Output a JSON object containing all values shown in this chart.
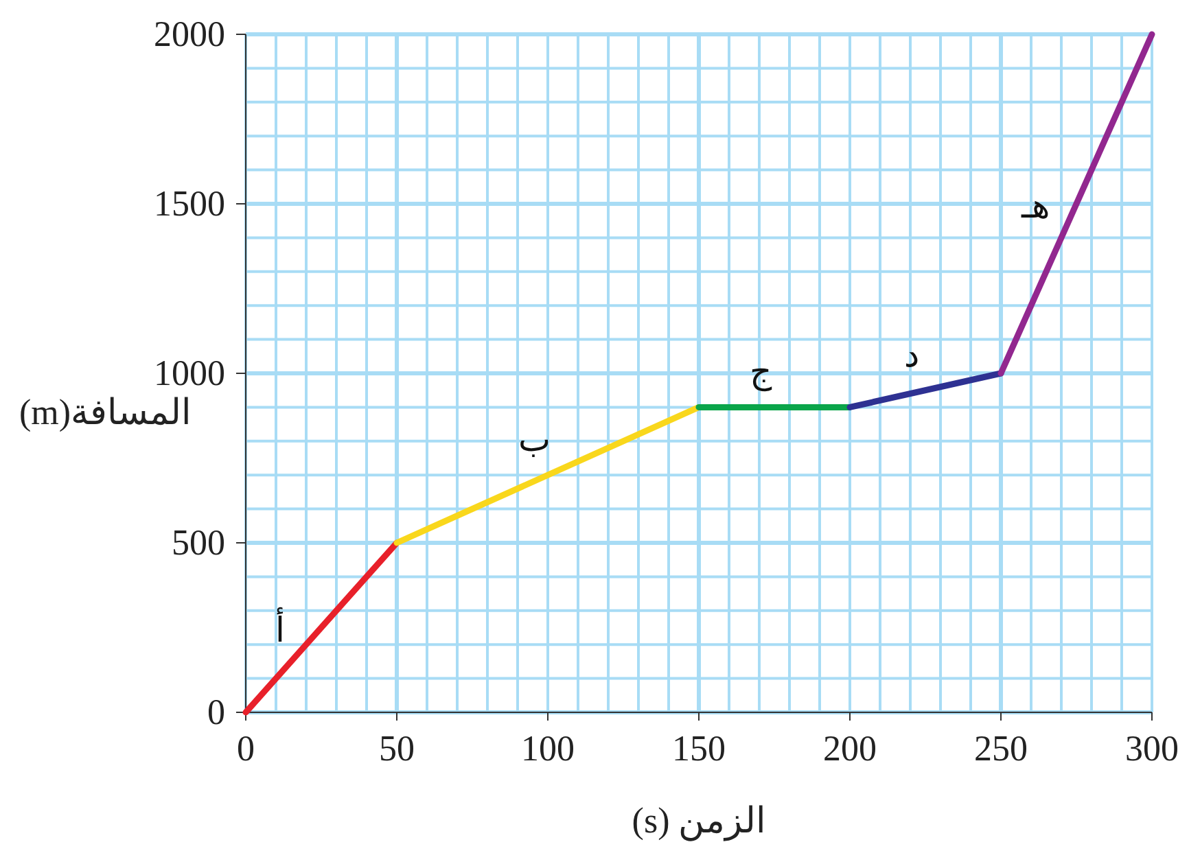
{
  "chart_data": {
    "type": "line",
    "xlabel": "الزمن (s)",
    "ylabel": "المسافة(m)",
    "xlim": [
      0,
      300
    ],
    "ylim": [
      0,
      2000
    ],
    "grid": true,
    "marker": "none",
    "line_style": "solid",
    "xticks": [
      0,
      {
        "value": 10,
        "label": null
      },
      {
        "value": 20,
        "label": null
      },
      {
        "value": 30,
        "label": null
      },
      {
        "value": 40,
        "label": null
      },
      50,
      {
        "value": 60,
        "label": null
      },
      {
        "value": 70,
        "label": null
      },
      {
        "value": 80,
        "label": null
      },
      {
        "value": 90,
        "label": null
      },
      100,
      {
        "value": 110,
        "label": null
      },
      {
        "value": 120,
        "label": null
      },
      {
        "value": 130,
        "label": null
      },
      {
        "value": 140,
        "label": null
      },
      150,
      {
        "value": 160,
        "label": null
      },
      {
        "value": 170,
        "label": null
      },
      {
        "value": 180,
        "label": null
      },
      {
        "value": 190,
        "label": null
      },
      200,
      {
        "value": 210,
        "label": null
      },
      {
        "value": 220,
        "label": null
      },
      {
        "value": 230,
        "label": null
      },
      {
        "value": 240,
        "label": null
      },
      250,
      {
        "value": 260,
        "label": null
      },
      {
        "value": 270,
        "label": null
      },
      {
        "value": 280,
        "label": null
      },
      {
        "value": 290,
        "label": null
      },
      300
    ],
    "yticks": [
      0,
      {
        "value": 100,
        "label": null
      },
      {
        "value": 200,
        "label": null
      },
      {
        "value": 300,
        "label": null
      },
      {
        "value": 400,
        "label": null
      },
      500,
      {
        "value": 600,
        "label": null
      },
      {
        "value": 700,
        "label": null
      },
      {
        "value": 800,
        "label": null
      },
      {
        "value": 900,
        "label": null
      },
      1000,
      {
        "value": 1100,
        "label": null
      },
      {
        "value": 1200,
        "label": null
      },
      {
        "value": 1300,
        "label": null
      },
      {
        "value": 1400,
        "label": null
      },
      1500,
      {
        "value": 1600,
        "label": null
      },
      {
        "value": 1700,
        "label": null
      },
      {
        "value": 1800,
        "label": null
      },
      {
        "value": 1900,
        "label": null
      },
      2000
    ],
    "series": [
      {
        "name": "أ",
        "color": "#e8202a",
        "x": [
          0,
          50
        ],
        "values": [
          0,
          500
        ]
      },
      {
        "name": "ب",
        "color": "#f9d71c",
        "x": [
          50,
          150
        ],
        "values": [
          500,
          900
        ]
      },
      {
        "name": "ج",
        "color": "#0aa54a",
        "x": [
          150,
          200
        ],
        "values": [
          900,
          900
        ]
      },
      {
        "name": "د",
        "color": "#2e3192",
        "x": [
          200,
          250
        ],
        "values": [
          900,
          1000
        ]
      },
      {
        "name": "هـ",
        "color": "#92278f",
        "x": [
          250,
          300
        ],
        "values": [
          1000,
          2000
        ]
      }
    ]
  }
}
